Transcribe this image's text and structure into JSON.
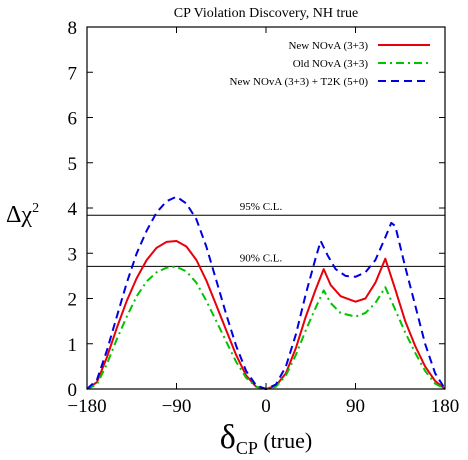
{
  "chart_data": {
    "type": "line",
    "title": "CP Violation Discovery, NH true",
    "xlabel_main": "δ",
    "xlabel_sub": "CP",
    "xlabel_suffix": " (true)",
    "ylabel_main": "Δχ",
    "ylabel_sup": "2",
    "xlim": [
      -180,
      180
    ],
    "ylim": [
      0,
      8
    ],
    "xticks": [
      -180,
      -90,
      0,
      90,
      180
    ],
    "xtick_labels": [
      "−180",
      "−90",
      "0",
      "90",
      "180"
    ],
    "yticks": [
      0,
      1,
      2,
      3,
      4,
      5,
      6,
      7,
      8
    ],
    "ytick_labels": [
      "0",
      "1",
      "2",
      "3",
      "4",
      "5",
      "6",
      "7",
      "8"
    ],
    "legend_position": "top-right",
    "reference_lines": [
      {
        "label": "95% C.L.",
        "y": 3.84
      },
      {
        "label": "90% C.L.",
        "y": 2.71
      }
    ],
    "series": [
      {
        "name": "New NOvA (3+3)",
        "color": "#e8000b",
        "dash": "solid",
        "points": [
          [
            -180,
            0
          ],
          [
            -170,
            0.15
          ],
          [
            -160,
            0.7
          ],
          [
            -150,
            1.35
          ],
          [
            -140,
            1.95
          ],
          [
            -130,
            2.45
          ],
          [
            -120,
            2.85
          ],
          [
            -110,
            3.12
          ],
          [
            -100,
            3.25
          ],
          [
            -90,
            3.27
          ],
          [
            -80,
            3.15
          ],
          [
            -70,
            2.85
          ],
          [
            -60,
            2.4
          ],
          [
            -50,
            1.85
          ],
          [
            -40,
            1.3
          ],
          [
            -30,
            0.75
          ],
          [
            -20,
            0.3
          ],
          [
            -10,
            0.05
          ],
          [
            0,
            0
          ],
          [
            10,
            0.07
          ],
          [
            20,
            0.35
          ],
          [
            30,
            0.9
          ],
          [
            40,
            1.6
          ],
          [
            50,
            2.2
          ],
          [
            58,
            2.65
          ],
          [
            65,
            2.3
          ],
          [
            75,
            2.05
          ],
          [
            90,
            1.93
          ],
          [
            100,
            2.0
          ],
          [
            110,
            2.35
          ],
          [
            120,
            2.88
          ],
          [
            130,
            2.2
          ],
          [
            140,
            1.5
          ],
          [
            150,
            0.95
          ],
          [
            160,
            0.5
          ],
          [
            170,
            0.18
          ],
          [
            180,
            0
          ]
        ]
      },
      {
        "name": "Old NOvA (3+3)",
        "color": "#00c400",
        "dash": "dashdot",
        "points": [
          [
            -180,
            0
          ],
          [
            -170,
            0.1
          ],
          [
            -160,
            0.55
          ],
          [
            -150,
            1.1
          ],
          [
            -140,
            1.6
          ],
          [
            -130,
            2.05
          ],
          [
            -120,
            2.38
          ],
          [
            -110,
            2.58
          ],
          [
            -100,
            2.68
          ],
          [
            -90,
            2.7
          ],
          [
            -80,
            2.6
          ],
          [
            -70,
            2.35
          ],
          [
            -60,
            1.95
          ],
          [
            -50,
            1.5
          ],
          [
            -40,
            1.05
          ],
          [
            -30,
            0.6
          ],
          [
            -20,
            0.25
          ],
          [
            -10,
            0.05
          ],
          [
            0,
            0
          ],
          [
            10,
            0.05
          ],
          [
            20,
            0.3
          ],
          [
            30,
            0.75
          ],
          [
            40,
            1.3
          ],
          [
            50,
            1.8
          ],
          [
            58,
            2.18
          ],
          [
            65,
            1.9
          ],
          [
            75,
            1.68
          ],
          [
            90,
            1.6
          ],
          [
            100,
            1.68
          ],
          [
            110,
            1.9
          ],
          [
            120,
            2.25
          ],
          [
            130,
            1.75
          ],
          [
            140,
            1.25
          ],
          [
            150,
            0.8
          ],
          [
            160,
            0.4
          ],
          [
            170,
            0.12
          ],
          [
            180,
            0
          ]
        ]
      },
      {
        "name": "New NOvA (3+3) + T2K (5+0)",
        "color": "#0000e0",
        "dash": "dashed",
        "points": [
          [
            -180,
            0
          ],
          [
            -170,
            0.2
          ],
          [
            -160,
            0.85
          ],
          [
            -150,
            1.6
          ],
          [
            -140,
            2.35
          ],
          [
            -130,
            3.0
          ],
          [
            -120,
            3.5
          ],
          [
            -110,
            3.9
          ],
          [
            -100,
            4.15
          ],
          [
            -90,
            4.25
          ],
          [
            -80,
            4.1
          ],
          [
            -70,
            3.75
          ],
          [
            -60,
            3.15
          ],
          [
            -50,
            2.4
          ],
          [
            -40,
            1.65
          ],
          [
            -30,
            0.95
          ],
          [
            -20,
            0.4
          ],
          [
            -10,
            0.08
          ],
          [
            0,
            0
          ],
          [
            10,
            0.1
          ],
          [
            20,
            0.5
          ],
          [
            30,
            1.2
          ],
          [
            40,
            2.1
          ],
          [
            50,
            2.9
          ],
          [
            55,
            3.27
          ],
          [
            62,
            2.95
          ],
          [
            70,
            2.65
          ],
          [
            80,
            2.5
          ],
          [
            90,
            2.48
          ],
          [
            100,
            2.58
          ],
          [
            110,
            2.85
          ],
          [
            120,
            3.35
          ],
          [
            126,
            3.67
          ],
          [
            130,
            3.6
          ],
          [
            140,
            2.7
          ],
          [
            150,
            1.85
          ],
          [
            160,
            1.0
          ],
          [
            170,
            0.35
          ],
          [
            180,
            0
          ]
        ]
      }
    ]
  }
}
